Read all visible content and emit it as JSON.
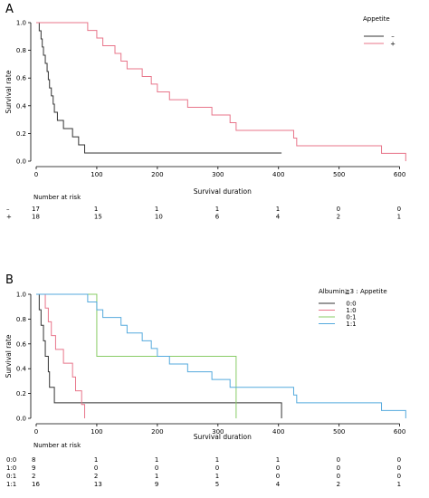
{
  "chart_data": [
    {
      "panel_label": "A",
      "type": "line",
      "subtype": "kaplan-meier step",
      "xlabel": "Survival duration",
      "ylabel": "Survival rate",
      "xlim": [
        0,
        620
      ],
      "ylim": [
        0,
        1.0
      ],
      "x_ticks": [
        0,
        100,
        200,
        300,
        400,
        500,
        600
      ],
      "y_ticks": [
        0.0,
        0.2,
        0.4,
        0.6,
        0.8,
        1.0
      ],
      "x_tick_labels": [
        "0",
        "100",
        "200",
        "300",
        "400",
        "500",
        "600"
      ],
      "y_tick_labels": [
        "0.0",
        "0.2",
        "0.4",
        "0.6",
        "0.8",
        "1.0"
      ],
      "legend": {
        "title": "Appetite",
        "placement": "top-right"
      },
      "series": [
        {
          "name": "–",
          "color": "#333333",
          "steps": [
            [
              0,
              1.0
            ],
            [
              5,
              0.941
            ],
            [
              8,
              0.882
            ],
            [
              10,
              0.824
            ],
            [
              12,
              0.765
            ],
            [
              15,
              0.706
            ],
            [
              18,
              0.647
            ],
            [
              20,
              0.588
            ],
            [
              22,
              0.529
            ],
            [
              25,
              0.471
            ],
            [
              28,
              0.412
            ],
            [
              30,
              0.353
            ],
            [
              35,
              0.294
            ],
            [
              45,
              0.235
            ],
            [
              60,
              0.176
            ],
            [
              70,
              0.118
            ],
            [
              80,
              0.059
            ],
            [
              405,
              0.059
            ]
          ]
        },
        {
          "name": "+",
          "color": "#e8758a",
          "steps": [
            [
              0,
              1.0
            ],
            [
              85,
              0.944
            ],
            [
              100,
              0.889
            ],
            [
              110,
              0.833
            ],
            [
              130,
              0.778
            ],
            [
              140,
              0.722
            ],
            [
              150,
              0.667
            ],
            [
              175,
              0.611
            ],
            [
              190,
              0.556
            ],
            [
              200,
              0.5
            ],
            [
              220,
              0.444
            ],
            [
              250,
              0.389
            ],
            [
              290,
              0.333
            ],
            [
              320,
              0.278
            ],
            [
              330,
              0.222
            ],
            [
              425,
              0.167
            ],
            [
              430,
              0.111
            ],
            [
              570,
              0.056
            ],
            [
              610,
              0.0
            ]
          ]
        }
      ],
      "risk_table": {
        "title": "Number at risk",
        "times": [
          0,
          100,
          200,
          300,
          400,
          500,
          600
        ],
        "rows": [
          {
            "label": "–",
            "values": [
              "17",
              "1",
              "1",
              "1",
              "1",
              "0",
              "0"
            ]
          },
          {
            "label": "+",
            "values": [
              "18",
              "15",
              "10",
              "6",
              "4",
              "2",
              "1"
            ]
          }
        ]
      }
    },
    {
      "panel_label": "B",
      "type": "line",
      "subtype": "kaplan-meier step",
      "xlabel": "Survival duration",
      "ylabel": "Survival rate",
      "xlim": [
        0,
        620
      ],
      "ylim": [
        0,
        1.0
      ],
      "x_ticks": [
        0,
        100,
        200,
        300,
        400,
        500,
        600
      ],
      "y_ticks": [
        0.0,
        0.2,
        0.4,
        0.6,
        0.8,
        1.0
      ],
      "x_tick_labels": [
        "0",
        "100",
        "200",
        "300",
        "400",
        "500",
        "600"
      ],
      "y_tick_labels": [
        "0.0",
        "0.2",
        "0.4",
        "0.6",
        "0.8",
        "1.0"
      ],
      "legend": {
        "title": "Albumin≧3 : Appetite",
        "placement": "top-right"
      },
      "series": [
        {
          "name": "0:0",
          "color": "#333333",
          "steps": [
            [
              0,
              1.0
            ],
            [
              5,
              0.875
            ],
            [
              8,
              0.75
            ],
            [
              12,
              0.625
            ],
            [
              15,
              0.5
            ],
            [
              20,
              0.375
            ],
            [
              22,
              0.25
            ],
            [
              30,
              0.125
            ],
            [
              405,
              0.125
            ],
            [
              405,
              0.0
            ]
          ]
        },
        {
          "name": "1:0",
          "color": "#e8758a",
          "steps": [
            [
              0,
              1.0
            ],
            [
              15,
              0.889
            ],
            [
              20,
              0.778
            ],
            [
              25,
              0.667
            ],
            [
              32,
              0.556
            ],
            [
              45,
              0.444
            ],
            [
              60,
              0.333
            ],
            [
              65,
              0.222
            ],
            [
              75,
              0.111
            ],
            [
              80,
              0.0
            ]
          ]
        },
        {
          "name": "0:1",
          "color": "#88cc66",
          "steps": [
            [
              0,
              1.0
            ],
            [
              100,
              0.5
            ],
            [
              330,
              0.5
            ],
            [
              330,
              0.0
            ]
          ]
        },
        {
          "name": "1:1",
          "color": "#55aadd",
          "steps": [
            [
              0,
              1.0
            ],
            [
              85,
              0.938
            ],
            [
              100,
              0.875
            ],
            [
              110,
              0.813
            ],
            [
              140,
              0.75
            ],
            [
              150,
              0.688
            ],
            [
              175,
              0.625
            ],
            [
              190,
              0.563
            ],
            [
              200,
              0.5
            ],
            [
              220,
              0.438
            ],
            [
              250,
              0.375
            ],
            [
              290,
              0.313
            ],
            [
              320,
              0.25
            ],
            [
              425,
              0.188
            ],
            [
              430,
              0.125
            ],
            [
              570,
              0.063
            ],
            [
              610,
              0.0
            ]
          ]
        }
      ],
      "risk_table": {
        "title": "Number at risk",
        "times": [
          0,
          100,
          200,
          300,
          400,
          500,
          600
        ],
        "rows": [
          {
            "label": "0:0",
            "values": [
              "8",
              "1",
              "1",
              "1",
              "1",
              "0",
              "0"
            ]
          },
          {
            "label": "1:0",
            "values": [
              "9",
              "0",
              "0",
              "0",
              "0",
              "0",
              "0"
            ]
          },
          {
            "label": "0:1",
            "values": [
              "2",
              "2",
              "1",
              "1",
              "0",
              "0",
              "0"
            ]
          },
          {
            "label": "1:1",
            "values": [
              "16",
              "13",
              "9",
              "5",
              "4",
              "2",
              "1"
            ]
          }
        ]
      }
    }
  ]
}
